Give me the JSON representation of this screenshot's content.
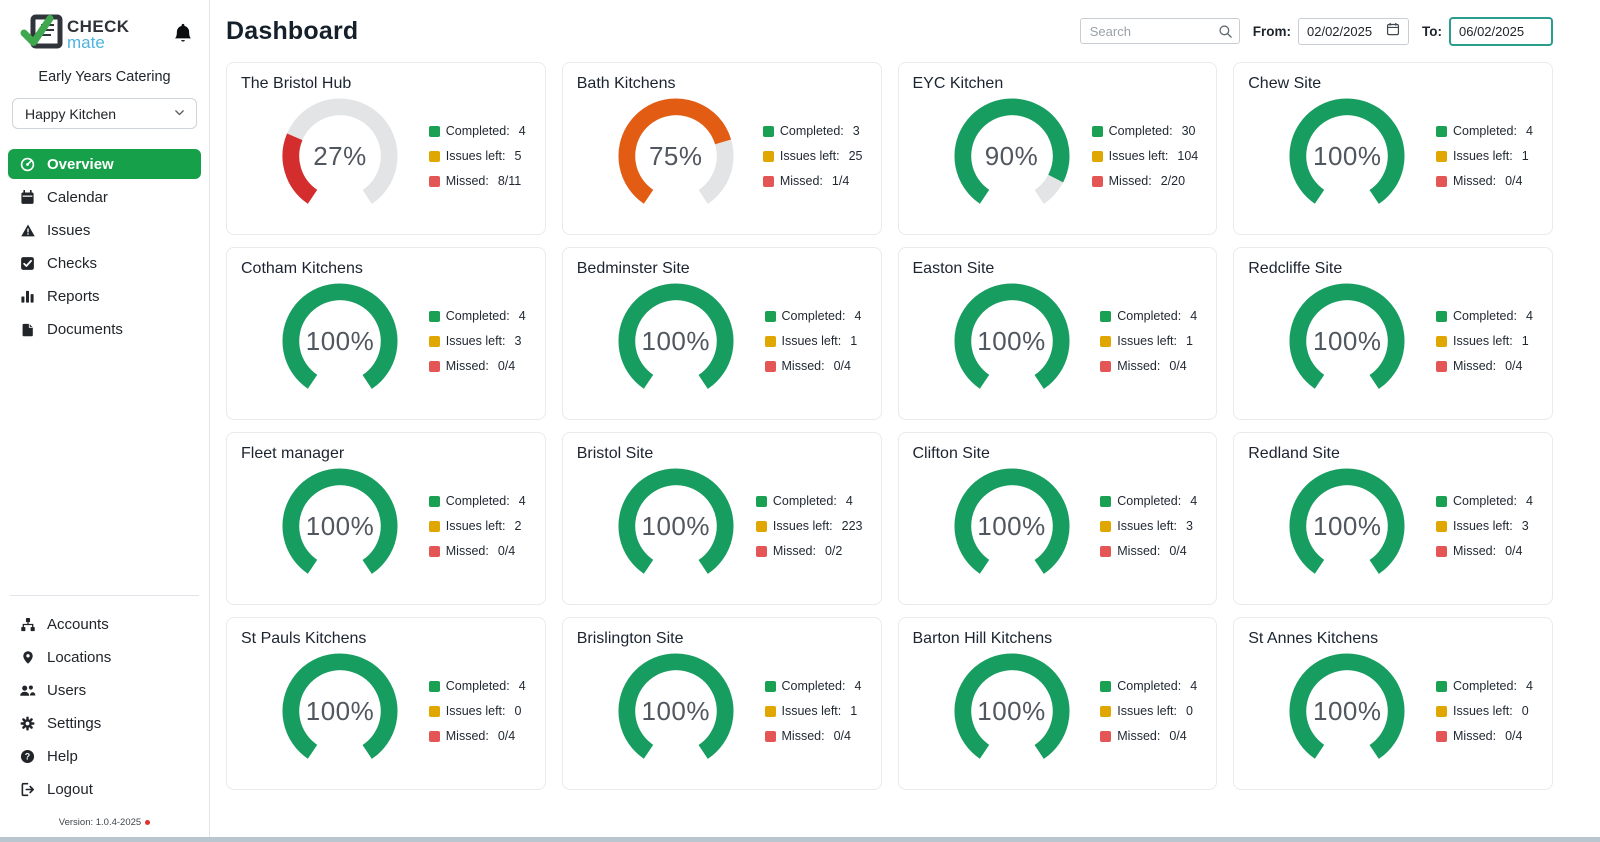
{
  "brand": {
    "check_text": "CHECK",
    "mate_text": "mate"
  },
  "icons": {
    "logo": "checkmate-logo-icon",
    "bell": "bell-icon",
    "search": "search-icon",
    "calendar": "calendar-input-icon",
    "chevron": "chevron-down-icon"
  },
  "sidebar": {
    "org_name": "Early Years Catering",
    "location_selector_value": "Happy Kitchen",
    "main_items": [
      {
        "label": "Overview",
        "icon": "speedometer-icon",
        "active": true
      },
      {
        "label": "Calendar",
        "icon": "calendar-icon"
      },
      {
        "label": "Issues",
        "icon": "warning-icon"
      },
      {
        "label": "Checks",
        "icon": "check-square-icon"
      },
      {
        "label": "Reports",
        "icon": "bar-chart-icon"
      },
      {
        "label": "Documents",
        "icon": "document-icon"
      }
    ],
    "footer_items": [
      {
        "label": "Accounts",
        "icon": "sitemap-icon"
      },
      {
        "label": "Locations",
        "icon": "map-pin-icon"
      },
      {
        "label": "Users",
        "icon": "users-icon"
      },
      {
        "label": "Settings",
        "icon": "gear-icon"
      },
      {
        "label": "Help",
        "icon": "help-circle-icon"
      },
      {
        "label": "Logout",
        "icon": "logout-icon"
      }
    ],
    "version": "Version: 1.0.4-2025"
  },
  "header": {
    "title": "Dashboard",
    "search_placeholder": "Search",
    "from_label": "From:",
    "from_value": "02/02/2025",
    "to_label": "To:",
    "to_value": "06/02/2025"
  },
  "legend_labels": {
    "completed": "Completed:",
    "issues_left": "Issues left:",
    "missed": "Missed:"
  },
  "cards": [
    {
      "title": "The Bristol Hub",
      "percent": 27,
      "color": "red",
      "completed": "4",
      "issues_left": "5",
      "missed": "8/11"
    },
    {
      "title": "Bath Kitchens",
      "percent": 75,
      "color": "orange",
      "completed": "3",
      "issues_left": "25",
      "missed": "1/4"
    },
    {
      "title": "EYC Kitchen",
      "percent": 90,
      "color": "green",
      "completed": "30",
      "issues_left": "104",
      "missed": "2/20"
    },
    {
      "title": "Chew Site",
      "percent": 100,
      "color": "green",
      "completed": "4",
      "issues_left": "1",
      "missed": "0/4"
    },
    {
      "title": "Cotham Kitchens",
      "percent": 100,
      "color": "green",
      "completed": "4",
      "issues_left": "3",
      "missed": "0/4"
    },
    {
      "title": "Bedminster Site",
      "percent": 100,
      "color": "green",
      "completed": "4",
      "issues_left": "1",
      "missed": "0/4"
    },
    {
      "title": "Easton Site",
      "percent": 100,
      "color": "green",
      "completed": "4",
      "issues_left": "1",
      "missed": "0/4"
    },
    {
      "title": "Redcliffe Site",
      "percent": 100,
      "color": "green",
      "completed": "4",
      "issues_left": "1",
      "missed": "0/4"
    },
    {
      "title": "Fleet manager",
      "percent": 100,
      "color": "green",
      "completed": "4",
      "issues_left": "2",
      "missed": "0/4"
    },
    {
      "title": "Bristol Site",
      "percent": 100,
      "color": "green",
      "completed": "4",
      "issues_left": "223",
      "missed": "0/2"
    },
    {
      "title": "Clifton Site",
      "percent": 100,
      "color": "green",
      "completed": "4",
      "issues_left": "3",
      "missed": "0/4"
    },
    {
      "title": "Redland Site",
      "percent": 100,
      "color": "green",
      "completed": "4",
      "issues_left": "3",
      "missed": "0/4"
    },
    {
      "title": "St Pauls Kitchens",
      "percent": 100,
      "color": "green",
      "completed": "4",
      "issues_left": "0",
      "missed": "0/4"
    },
    {
      "title": "Brislington Site",
      "percent": 100,
      "color": "green",
      "completed": "4",
      "issues_left": "1",
      "missed": "0/4"
    },
    {
      "title": "Barton Hill Kitchens",
      "percent": 100,
      "color": "green",
      "completed": "4",
      "issues_left": "0",
      "missed": "0/4"
    },
    {
      "title": "St Annes Kitchens",
      "percent": 100,
      "color": "green",
      "completed": "4",
      "issues_left": "0",
      "missed": "0/4"
    }
  ],
  "colors": {
    "red": "#D32D2D",
    "orange": "#E35C14",
    "green": "#189D61",
    "legend_green": "#1AA053",
    "legend_yellow": "#E0A702",
    "legend_red": "#E45555",
    "accent_green": "#17A04A",
    "track_gray": "#E3E4E6",
    "focus_teal": "#2A9D8F",
    "brand_blue": "#4FB3DF",
    "version_dot_red": "#E03131"
  }
}
